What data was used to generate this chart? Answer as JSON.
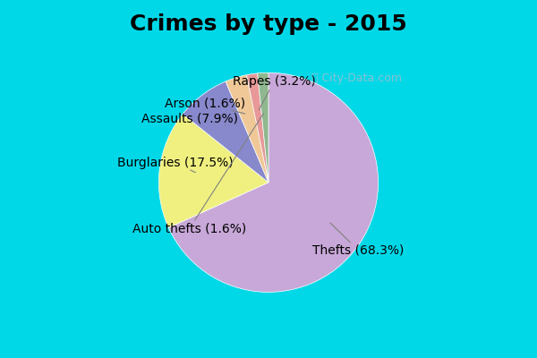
{
  "title": "Crimes by type - 2015",
  "labels": [
    "Thefts",
    "Burglaries",
    "Assaults",
    "Rapes",
    "Arson",
    "Auto thefts"
  ],
  "values": [
    68.3,
    17.5,
    7.9,
    3.2,
    1.6,
    1.6
  ],
  "colors": [
    "#c8a8d8",
    "#f0f080",
    "#8888cc",
    "#f0c898",
    "#e89898",
    "#90b890"
  ],
  "label_texts": [
    "Thefts (68.3%)",
    "Burglaries (17.5%)",
    "Assaults (7.9%)",
    "Rapes (3.2%)",
    "Arson (1.6%)",
    "Auto thefts (1.6%)"
  ],
  "background_color_outer": "#00d8e8",
  "background_color_inner": "#d8ecd8",
  "title_fontsize": 18,
  "label_fontsize": 10
}
